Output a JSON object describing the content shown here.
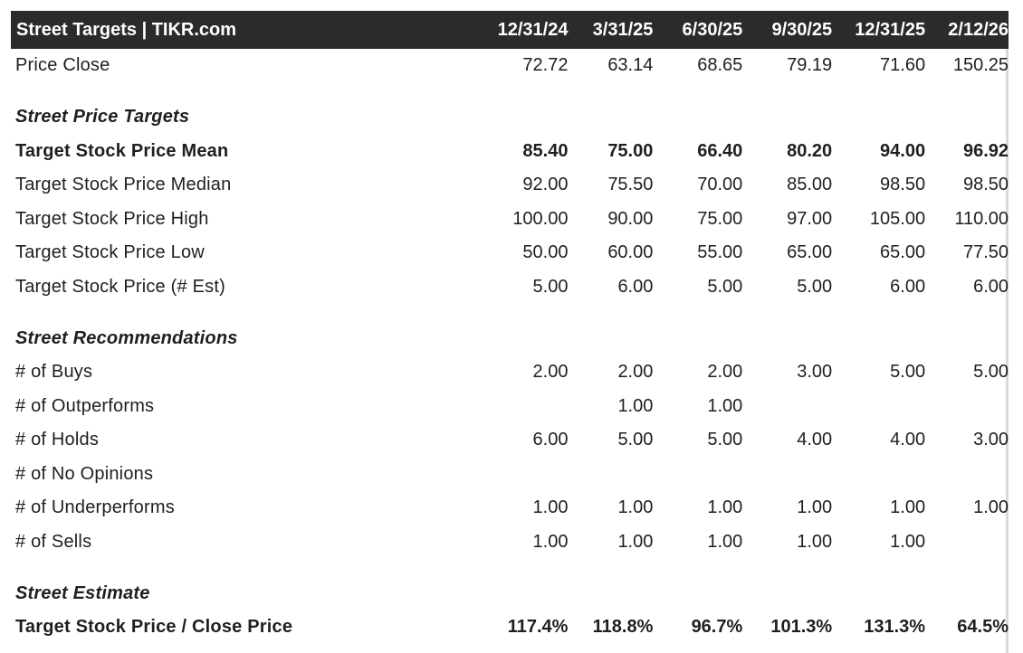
{
  "header": {
    "title": "Street Targets | TIKR.com",
    "columns": [
      "12/31/24",
      "3/31/25",
      "6/30/25",
      "9/30/25",
      "12/31/25",
      "2/12/26"
    ]
  },
  "price_close": {
    "label": "Price Close",
    "values": [
      "72.72",
      "63.14",
      "68.65",
      "79.19",
      "71.60",
      "150.25"
    ]
  },
  "street_price_targets": {
    "heading": "Street Price Targets",
    "rows": [
      {
        "label": "Target Stock Price Mean",
        "values": [
          "85.40",
          "75.00",
          "66.40",
          "80.20",
          "94.00",
          "96.92"
        ]
      },
      {
        "label": "Target Stock Price Median",
        "values": [
          "92.00",
          "75.50",
          "70.00",
          "85.00",
          "98.50",
          "98.50"
        ]
      },
      {
        "label": "Target Stock Price High",
        "values": [
          "100.00",
          "90.00",
          "75.00",
          "97.00",
          "105.00",
          "110.00"
        ]
      },
      {
        "label": "Target Stock Price Low",
        "values": [
          "50.00",
          "60.00",
          "55.00",
          "65.00",
          "65.00",
          "77.50"
        ]
      },
      {
        "label": "Target Stock Price (# Est)",
        "values": [
          "5.00",
          "6.00",
          "5.00",
          "5.00",
          "6.00",
          "6.00"
        ]
      }
    ]
  },
  "street_recommendations": {
    "heading": "Street Recommendations",
    "rows": [
      {
        "label": "# of Buys",
        "values": [
          "2.00",
          "2.00",
          "2.00",
          "3.00",
          "5.00",
          "5.00"
        ]
      },
      {
        "label": "# of Outperforms",
        "values": [
          "",
          "1.00",
          "1.00",
          "",
          "",
          ""
        ]
      },
      {
        "label": "# of Holds",
        "values": [
          "6.00",
          "5.00",
          "5.00",
          "4.00",
          "4.00",
          "3.00"
        ]
      },
      {
        "label": "# of No Opinions",
        "values": [
          "",
          "",
          "",
          "",
          "",
          ""
        ]
      },
      {
        "label": "# of Underperforms",
        "values": [
          "1.00",
          "1.00",
          "1.00",
          "1.00",
          "1.00",
          "1.00"
        ]
      },
      {
        "label": "# of Sells",
        "values": [
          "1.00",
          "1.00",
          "1.00",
          "1.00",
          "1.00",
          ""
        ]
      }
    ]
  },
  "street_estimate": {
    "heading": "Street Estimate",
    "rows": [
      {
        "label": "Target Stock Price / Close Price",
        "values": [
          "117.4%",
          "118.8%",
          "96.7%",
          "101.3%",
          "131.3%",
          "64.5%"
        ]
      }
    ]
  }
}
